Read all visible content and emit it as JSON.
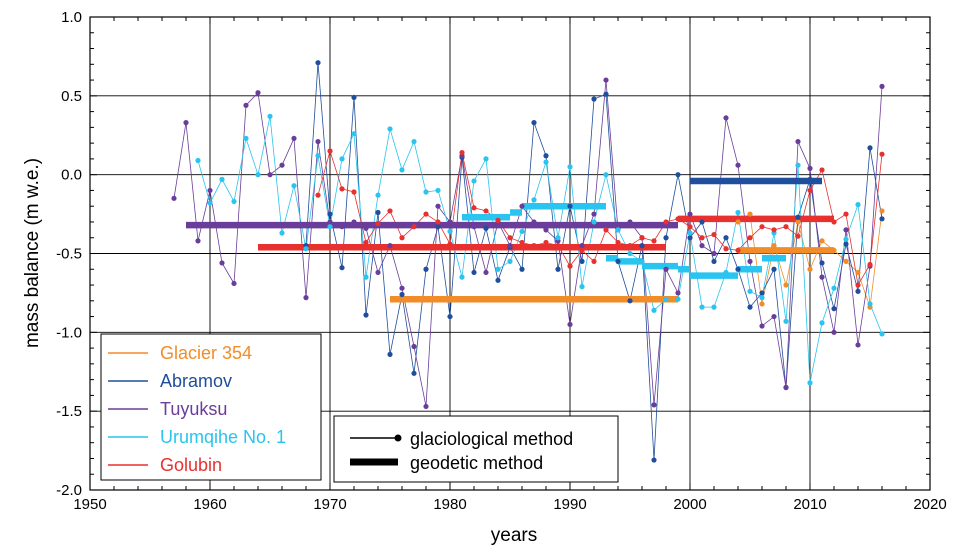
{
  "chart_data": {
    "type": "line",
    "xlabel": "years",
    "ylabel": "mass balance (m w.e.)",
    "xlim": [
      1950,
      2020
    ],
    "ylim": [
      -2.0,
      1.0
    ],
    "x_ticks": [
      "1950",
      "1960",
      "1970",
      "1980",
      "1990",
      "2000",
      "2010",
      "2020"
    ],
    "y_ticks": [
      "-2.0",
      "-1.5",
      "-1.0",
      "-0.5",
      "0.0",
      "0.5",
      "1.0"
    ],
    "grid": true,
    "legend_placement": "bottom-left",
    "series": [
      {
        "name": "Glacier 354",
        "color": "#f28c28",
        "glaciological": {
          "x": [
            2004,
            2005,
            2006,
            2007,
            2008,
            2009,
            2010,
            2011,
            2012,
            2013,
            2014,
            2015,
            2016
          ],
          "y": [
            -0.3,
            -0.25,
            -0.82,
            -0.45,
            -0.7,
            -0.3,
            -0.6,
            -0.42,
            -0.48,
            -0.55,
            -0.62,
            -0.84,
            -0.23
          ]
        },
        "geodetic": [
          {
            "x0": 1975,
            "x1": 1999,
            "y": -0.79
          },
          {
            "x0": 2004,
            "x1": 2012,
            "y": -0.48
          }
        ]
      },
      {
        "name": "Abramov",
        "color": "#1f4e9c",
        "glaciological": {
          "x": [
            1968,
            1969,
            1970,
            1971,
            1972,
            1973,
            1974,
            1975,
            1976,
            1977,
            1978,
            1979,
            1980,
            1981,
            1982,
            1983,
            1984,
            1985,
            1986,
            1987,
            1988,
            1989,
            1990,
            1991,
            1992,
            1993,
            1994,
            1995,
            1996,
            1997,
            1998,
            1999,
            2000,
            2001,
            2002,
            2003,
            2004,
            2005,
            2006,
            2007,
            2008,
            2009,
            2010,
            2011,
            2012,
            2013,
            2014,
            2015,
            2016
          ],
          "y": [
            -0.45,
            0.71,
            -0.25,
            -0.59,
            0.49,
            -0.89,
            -0.24,
            -1.14,
            -0.76,
            -1.26,
            -0.6,
            -0.33,
            -0.9,
            0.11,
            -0.62,
            -0.34,
            -0.67,
            -0.46,
            -0.6,
            0.33,
            0.12,
            -0.6,
            -0.2,
            -0.55,
            0.48,
            0.51,
            -0.55,
            -0.8,
            -0.45,
            -1.81,
            -0.4,
            0.0,
            -0.4,
            -0.3,
            -0.55,
            -0.4,
            -0.6,
            -0.84,
            -0.75,
            -0.6,
            -1.35,
            -0.27,
            -0.03,
            -0.56,
            -0.85,
            -0.44,
            -0.74,
            0.17,
            -0.28
          ]
        },
        "geodetic": [
          {
            "x0": 2000,
            "x1": 2011,
            "y": -0.04
          }
        ]
      },
      {
        "name": "Tuyuksu",
        "color": "#6a3d9a",
        "glaciological": {
          "x": [
            1957,
            1958,
            1959,
            1960,
            1961,
            1962,
            1963,
            1964,
            1965,
            1966,
            1967,
            1968,
            1969,
            1970,
            1971,
            1972,
            1973,
            1974,
            1975,
            1976,
            1977,
            1978,
            1979,
            1980,
            1981,
            1982,
            1983,
            1984,
            1985,
            1986,
            1987,
            1988,
            1989,
            1990,
            1991,
            1992,
            1993,
            1994,
            1995,
            1996,
            1997,
            1998,
            1999,
            2000,
            2001,
            2002,
            2003,
            2004,
            2005,
            2006,
            2007,
            2008,
            2009,
            2010,
            2011,
            2012,
            2013,
            2014,
            2015,
            2016
          ],
          "y": [
            -0.15,
            0.33,
            -0.42,
            -0.1,
            -0.56,
            -0.69,
            0.44,
            0.52,
            0.0,
            0.06,
            0.23,
            -0.78,
            0.21,
            -0.3,
            -0.33,
            -0.3,
            -0.34,
            -0.62,
            -0.45,
            -0.72,
            -1.09,
            -1.47,
            -0.2,
            -0.3,
            0.12,
            -0.33,
            -0.62,
            -0.3,
            -0.45,
            -0.2,
            -0.3,
            -0.35,
            -0.42,
            -0.95,
            -0.45,
            -0.25,
            0.6,
            -0.35,
            -0.3,
            -0.4,
            -1.46,
            -0.6,
            -0.75,
            -0.25,
            -0.45,
            -0.5,
            0.36,
            0.06,
            -0.55,
            -0.96,
            -0.9,
            -1.35,
            0.21,
            0.04,
            -0.65,
            -1.0,
            -0.35,
            -1.08,
            -0.58,
            0.56
          ]
        },
        "geodetic": [
          {
            "x0": 1958,
            "x1": 1999,
            "y": -0.32
          }
        ]
      },
      {
        "name": "Urumqihe No. 1",
        "color": "#29c4ef",
        "glaciological": {
          "x": [
            1959,
            1960,
            1961,
            1962,
            1963,
            1964,
            1965,
            1966,
            1967,
            1968,
            1969,
            1970,
            1971,
            1972,
            1973,
            1974,
            1975,
            1976,
            1977,
            1978,
            1979,
            1980,
            1981,
            1982,
            1983,
            1984,
            1985,
            1986,
            1987,
            1988,
            1989,
            1990,
            1991,
            1992,
            1993,
            1994,
            1995,
            1996,
            1997,
            1998,
            1999,
            2000,
            2001,
            2002,
            2003,
            2004,
            2005,
            2006,
            2007,
            2008,
            2009,
            2010,
            2011,
            2012,
            2013,
            2014,
            2015,
            2016
          ],
          "y": [
            0.09,
            -0.18,
            -0.03,
            -0.17,
            0.23,
            0.0,
            0.37,
            -0.37,
            -0.07,
            -0.47,
            0.12,
            -0.33,
            0.1,
            0.26,
            -0.65,
            -0.13,
            0.29,
            0.03,
            0.21,
            -0.11,
            -0.1,
            -0.36,
            -0.65,
            -0.04,
            0.1,
            -0.6,
            -0.55,
            -0.36,
            -0.16,
            0.08,
            -0.4,
            0.05,
            -0.71,
            -0.3,
            0.0,
            -0.35,
            -0.5,
            -0.55,
            -0.86,
            -0.79,
            -0.79,
            -0.37,
            -0.84,
            -0.84,
            -0.62,
            -0.24,
            -0.74,
            -0.78,
            -0.37,
            -0.93,
            0.06,
            -1.32,
            -0.94,
            -0.72,
            -0.41,
            -0.19,
            -0.82,
            -1.01
          ]
        },
        "geodetic": [
          {
            "x0": 1981,
            "x1": 1985,
            "y": -0.27
          },
          {
            "x0": 1985,
            "x1": 1986,
            "y": -0.24
          },
          {
            "x0": 1986,
            "x1": 1993,
            "y": -0.2
          },
          {
            "x0": 1993,
            "x1": 1994,
            "y": -0.53
          },
          {
            "x0": 1994,
            "x1": 1996,
            "y": -0.55
          },
          {
            "x0": 1996,
            "x1": 1999,
            "y": -0.58
          },
          {
            "x0": 1999,
            "x1": 2000,
            "y": -0.6
          },
          {
            "x0": 2000,
            "x1": 2004,
            "y": -0.64
          },
          {
            "x0": 2004,
            "x1": 2006,
            "y": -0.6
          },
          {
            "x0": 2006,
            "x1": 2008,
            "y": -0.53
          }
        ]
      },
      {
        "name": "Golubin",
        "color": "#e8312f",
        "glaciological": {
          "x": [
            1969,
            1970,
            1971,
            1972,
            1973,
            1974,
            1975,
            1976,
            1977,
            1978,
            1979,
            1980,
            1981,
            1982,
            1983,
            1984,
            1985,
            1986,
            1987,
            1988,
            1989,
            1990,
            1991,
            1992,
            1993,
            1994,
            1995,
            1996,
            1997,
            1998,
            1999,
            2000,
            2001,
            2002,
            2003,
            2004,
            2005,
            2006,
            2007,
            2008,
            2009,
            2010,
            2011,
            2012,
            2013,
            2014,
            2015,
            2016
          ],
          "y": [
            -0.13,
            0.15,
            -0.09,
            -0.11,
            -0.43,
            -0.31,
            -0.23,
            -0.4,
            -0.33,
            -0.25,
            -0.3,
            -0.44,
            0.14,
            -0.21,
            -0.23,
            -0.29,
            -0.4,
            -0.43,
            -0.45,
            -0.43,
            -0.45,
            -0.58,
            -0.48,
            -0.55,
            -0.35,
            -0.43,
            -0.45,
            -0.4,
            -0.42,
            -0.3,
            -0.28,
            -0.33,
            -0.4,
            -0.38,
            -0.47,
            -0.48,
            -0.4,
            -0.33,
            -0.35,
            -0.33,
            -0.39,
            -0.1,
            0.03,
            -0.3,
            -0.25,
            -0.7,
            -0.57,
            0.13
          ]
        },
        "geodetic": [
          {
            "x0": 1964,
            "x1": 1998,
            "y": -0.46
          },
          {
            "x0": 1999,
            "x1": 2012,
            "y": -0.28
          }
        ]
      }
    ],
    "method_legend": {
      "glaciological": "glaciological method",
      "geodetic": "geodetic method"
    }
  }
}
